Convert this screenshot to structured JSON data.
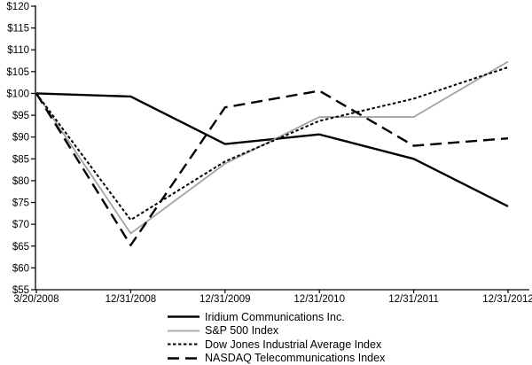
{
  "chart_data": {
    "type": "line",
    "title": "",
    "xlabel": "",
    "ylabel": "",
    "x_labels": [
      "3/20/2008",
      "12/31/2008",
      "12/31/2009",
      "12/31/2010",
      "12/31/2011",
      "12/31/2012"
    ],
    "y_tick_labels": [
      "$120",
      "$115",
      "$110",
      "$105",
      "$100",
      "$95",
      "$90",
      "$85",
      "$80",
      "$75",
      "$70",
      "$65",
      "$60",
      "$55"
    ],
    "ylim": [
      55,
      120
    ],
    "y_tick_step": 5,
    "grid": false,
    "legend_position": "bottom-center",
    "axis_color": "#000000",
    "series": [
      {
        "name": "Iridium Communications Inc.",
        "color": "#000000",
        "dash": "",
        "width": 2.4,
        "values": [
          100,
          99.3,
          88.4,
          90.6,
          85.0,
          74.1
        ]
      },
      {
        "name": "S&P 500 Index",
        "color": "#a3a3a3",
        "dash": "",
        "width": 1.8,
        "values": [
          100,
          67.9,
          83.9,
          94.6,
          94.6,
          107.3
        ]
      },
      {
        "name": "Dow Jones Industrial Average Index",
        "color": "#000000",
        "dash": "3.5 2.5",
        "width": 2,
        "values": [
          100,
          71.0,
          84.4,
          93.7,
          98.8,
          106.0
        ]
      },
      {
        "name": "NASDAQ Telecommunications Index",
        "color": "#000000",
        "dash": "13 7",
        "width": 2.4,
        "values": [
          100,
          65.2,
          96.8,
          100.6,
          88.0,
          89.7
        ]
      }
    ]
  }
}
